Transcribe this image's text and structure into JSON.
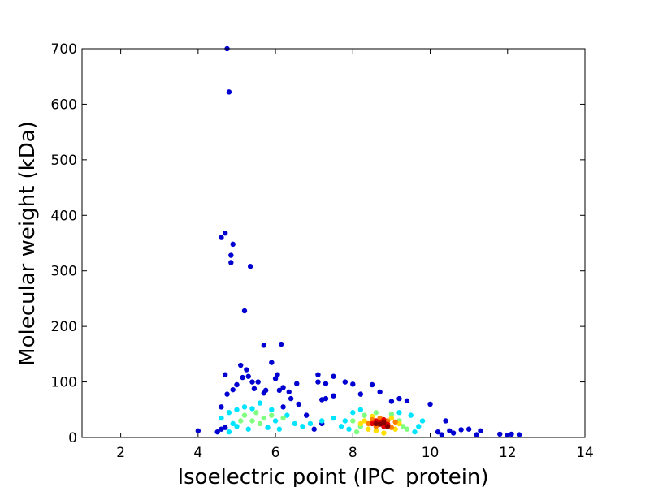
{
  "chart_data": {
    "type": "scatter",
    "xlabel": "Isoelectric point (IPC_protein)",
    "ylabel": "Molecular weight (kDa)",
    "xlim": [
      1,
      14
    ],
    "xticks": [
      2,
      4,
      6,
      8,
      10,
      12,
      14
    ],
    "ylim": [
      0,
      700
    ],
    "yticks": [
      0,
      100,
      200,
      300,
      400,
      500,
      600,
      700
    ],
    "groups": [
      {
        "color": "#0000d0",
        "x": [
          4.75,
          4.8,
          4.7,
          4.6,
          4.9,
          4.85,
          4.85,
          5.35,
          5.2,
          5.7,
          6.15,
          5.9,
          5.1,
          5.25,
          4.7,
          5.3,
          5.15,
          6.05,
          6.0,
          5.55,
          5.4,
          6.55,
          5.0,
          4.9,
          4.75,
          5.7,
          5.75,
          6.35,
          6.1,
          6.2,
          6.4,
          5.45,
          7.1,
          7.1,
          7.3,
          7.5,
          7.8,
          8.0,
          7.5,
          7.3,
          7.2,
          8.2,
          8.5,
          8.7,
          9.2,
          9.4,
          9.0,
          10.0,
          4.0,
          4.5,
          4.6,
          4.7,
          10.4,
          10.2,
          10.5,
          10.8,
          11.0,
          11.3,
          11.2,
          11.8,
          12.0,
          12.1,
          12.3,
          10.3,
          10.6,
          6.6,
          6.8,
          7.0,
          7.2,
          6.2,
          4.6
        ],
        "y": [
          700,
          622,
          368,
          360,
          348,
          328,
          315,
          308,
          228,
          166,
          168,
          135,
          130,
          122,
          113,
          110,
          108,
          113,
          106,
          100,
          100,
          97,
          95,
          86,
          78,
          80,
          85,
          82,
          85,
          90,
          70,
          88,
          113,
          100,
          97,
          110,
          100,
          96,
          75,
          70,
          68,
          78,
          95,
          82,
          70,
          66,
          65,
          60,
          12,
          10,
          15,
          18,
          30,
          10,
          12,
          14,
          15,
          12,
          5,
          6,
          4,
          6,
          5,
          5,
          8,
          60,
          40,
          15,
          25,
          55,
          55
        ]
      },
      {
        "color": "#00e5ff",
        "x": [
          4.6,
          4.8,
          5.0,
          5.2,
          5.4,
          5.9,
          6.0,
          6.3,
          6.5,
          6.7,
          5.0,
          4.9,
          5.3,
          5.8,
          6.1,
          7.2,
          7.5,
          7.8,
          8.0,
          8.2,
          9.2,
          9.5,
          9.7,
          9.8,
          7.9,
          7.7,
          9.6,
          4.8,
          5.6,
          6.9
        ],
        "y": [
          35,
          45,
          50,
          55,
          52,
          50,
          30,
          40,
          25,
          20,
          20,
          25,
          15,
          18,
          15,
          30,
          35,
          30,
          45,
          50,
          45,
          40,
          20,
          30,
          15,
          20,
          10,
          10,
          62,
          25
        ]
      },
      {
        "color": "#80ff80",
        "x": [
          5.2,
          5.5,
          5.7,
          5.4,
          5.9,
          5.1,
          5.6,
          6.2,
          8.0,
          8.2,
          8.3,
          9.2,
          9.3,
          9.4,
          8.1,
          9.0,
          8.6
        ],
        "y": [
          40,
          45,
          35,
          30,
          40,
          30,
          25,
          35,
          30,
          20,
          40,
          30,
          20,
          15,
          10,
          42,
          45
        ]
      },
      {
        "color": "#ffe000",
        "x": [
          8.3,
          8.4,
          8.5,
          9.0,
          9.1,
          8.8,
          8.6,
          9.2,
          8.2
        ],
        "y": [
          30,
          15,
          38,
          35,
          15,
          8,
          12,
          25,
          25
        ]
      },
      {
        "color": "#ff8000",
        "x": [
          8.4,
          8.5,
          8.6,
          8.9,
          9.0,
          8.7,
          9.1
        ],
        "y": [
          25,
          32,
          20,
          30,
          18,
          35,
          28
        ]
      },
      {
        "color": "#e80000",
        "x": [
          8.5,
          8.7,
          8.8,
          8.9,
          8.6,
          8.8
        ],
        "y": [
          25,
          28,
          20,
          24,
          30,
          32
        ]
      },
      {
        "color": "#8b0000",
        "x": [
          8.7,
          8.8,
          8.9,
          8.6
        ],
        "y": [
          24,
          27,
          20,
          25
        ]
      }
    ]
  }
}
